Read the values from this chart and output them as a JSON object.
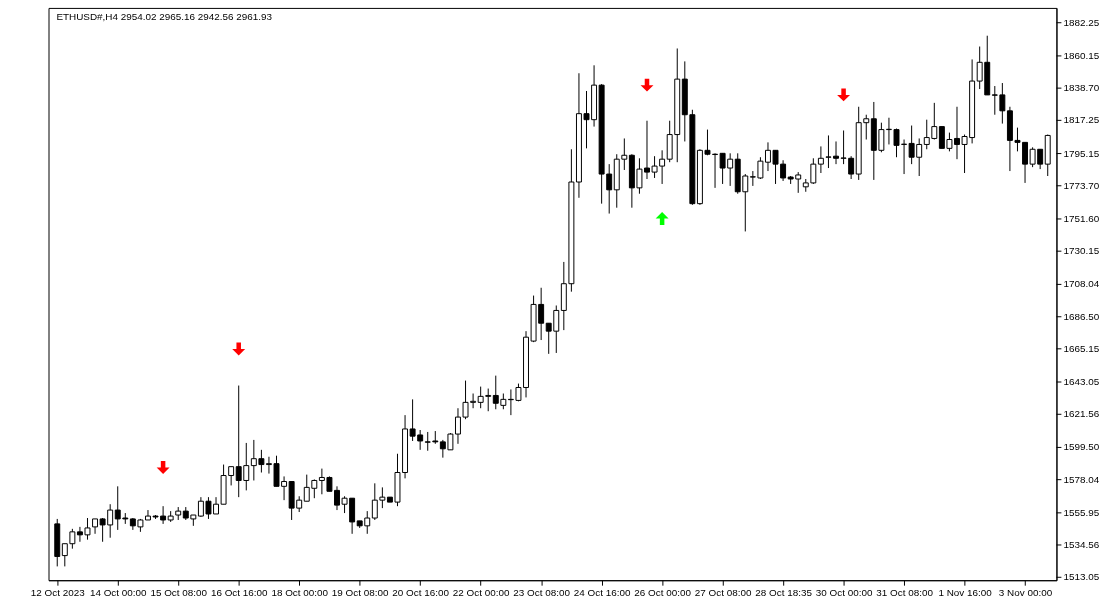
{
  "chart_data": {
    "type": "candlestick",
    "title": "ETHUSD#,H4 2954.02 2965.16 2942.56 2961.93",
    "color": "#000000",
    "categories": [
      "12 Oct 2023",
      null,
      null,
      null,
      null,
      null,
      null,
      null,
      "14 Oct 00:00",
      null,
      null,
      null,
      null,
      null,
      null,
      null,
      "15 Oct 08:00",
      null,
      null,
      null,
      null,
      null,
      null,
      null,
      "16 Oct 16:00",
      null,
      null,
      null,
      null,
      null,
      null,
      null,
      "18 Oct 00:00",
      null,
      null,
      null,
      null,
      null,
      null,
      null,
      "19 Oct 08:00",
      null,
      null,
      null,
      null,
      null,
      null,
      null,
      "20 Oct 16:00",
      null,
      null,
      null,
      null,
      null,
      null,
      null,
      "22 Oct 00:00",
      null,
      null,
      null,
      null,
      null,
      null,
      null,
      "23 Oct 08:00",
      null,
      null,
      null,
      null,
      null,
      null,
      null,
      "24 Oct 16:00",
      null,
      null,
      null,
      null,
      null,
      null,
      null,
      "26 Oct 00:00",
      null,
      null,
      null,
      null,
      null,
      null,
      null,
      "27 Oct 08:00",
      null,
      null,
      null,
      null,
      null,
      null,
      null,
      "28 Oct 18:35",
      null,
      null,
      null,
      null,
      null,
      null,
      null,
      "30 Oct 00:00",
      null,
      null,
      null,
      null,
      null,
      null,
      null,
      "31 Oct 08:00",
      null,
      null,
      null,
      null,
      null,
      null,
      null,
      "1 Nov 16:00",
      null,
      null,
      null,
      null,
      null,
      null,
      null,
      "3 Nov 00:00",
      null,
      null,
      null
    ],
    "ohlc": [
      [
        1548.6,
        1551.9,
        1520.3,
        1526.9
      ],
      [
        1527.5,
        1535.4,
        1520.3,
        1535.4
      ],
      [
        1535.4,
        1545.3,
        1532.1,
        1543.3
      ],
      [
        1543.3,
        1546.6,
        1536.7,
        1541.3
      ],
      [
        1541.3,
        1552.5,
        1538.1,
        1545.9
      ],
      [
        1546.6,
        1551.9,
        1542.0,
        1551.9
      ],
      [
        1551.9,
        1552.5,
        1536.7,
        1547.9
      ],
      [
        1547.9,
        1561.7,
        1539.4,
        1557.8
      ],
      [
        1557.8,
        1573.6,
        1544.6,
        1551.9
      ],
      [
        1552.5,
        1555.8,
        1548.6,
        1551.9
      ],
      [
        1551.9,
        1552.5,
        1544.6,
        1547.3
      ],
      [
        1546.6,
        1551.9,
        1543.3,
        1551.2
      ],
      [
        1551.2,
        1557.8,
        1551.2,
        1553.8
      ],
      [
        1553.8,
        1554.5,
        1551.9,
        1553.2
      ],
      [
        1553.8,
        1560.4,
        1548.6,
        1551.2
      ],
      [
        1551.2,
        1557.1,
        1549.9,
        1553.8
      ],
      [
        1554.5,
        1559.8,
        1551.2,
        1557.1
      ],
      [
        1557.1,
        1559.8,
        1551.2,
        1552.5
      ],
      [
        1551.9,
        1554.5,
        1547.3,
        1554.5
      ],
      [
        1553.8,
        1566.4,
        1553.2,
        1563.7
      ],
      [
        1563.7,
        1566.4,
        1551.9,
        1555.2
      ],
      [
        1555.2,
        1566.4,
        1555.2,
        1561.7
      ],
      [
        1561.7,
        1588.1,
        1561.7,
        1580.8
      ],
      [
        1580.8,
        1586.7,
        1574.2,
        1586.7
      ],
      [
        1586.7,
        1640.7,
        1566.4,
        1577.5
      ],
      [
        1577.5,
        1602.5,
        1570.9,
        1587.4
      ],
      [
        1587.4,
        1604.5,
        1577.5,
        1592.0
      ],
      [
        1592.0,
        1597.9,
        1582.8,
        1588.1
      ],
      [
        1588.1,
        1593.3,
        1582.1,
        1588.7
      ],
      [
        1588.7,
        1594.0,
        1573.6,
        1573.6
      ],
      [
        1573.6,
        1580.2,
        1564.4,
        1576.8
      ],
      [
        1576.8,
        1576.8,
        1551.2,
        1559.1
      ],
      [
        1559.1,
        1567.0,
        1556.5,
        1564.4
      ],
      [
        1563.7,
        1581.4,
        1563.7,
        1572.9
      ],
      [
        1572.3,
        1578.2,
        1565.7,
        1577.5
      ],
      [
        1577.5,
        1585.4,
        1568.3,
        1579.5
      ],
      [
        1579.5,
        1580.2,
        1570.3,
        1570.3
      ],
      [
        1570.9,
        1573.6,
        1557.8,
        1561.1
      ],
      [
        1561.7,
        1567.0,
        1555.8,
        1565.7
      ],
      [
        1565.7,
        1565.7,
        1542.0,
        1549.9
      ],
      [
        1550.6,
        1550.6,
        1545.9,
        1547.3
      ],
      [
        1547.3,
        1557.1,
        1542.0,
        1552.5
      ],
      [
        1552.5,
        1575.6,
        1551.2,
        1564.4
      ],
      [
        1564.4,
        1572.9,
        1559.1,
        1566.4
      ],
      [
        1566.4,
        1566.4,
        1563.1,
        1563.1
      ],
      [
        1563.1,
        1595.3,
        1560.4,
        1582.8
      ],
      [
        1582.8,
        1621.0,
        1578.9,
        1611.8
      ],
      [
        1611.8,
        1631.5,
        1603.8,
        1607.0
      ],
      [
        1607.8,
        1611.1,
        1597.9,
        1603.8
      ],
      [
        1603.2,
        1609.8,
        1597.3,
        1603.0
      ],
      [
        1603.8,
        1610.4,
        1601.9,
        1603.2
      ],
      [
        1603.2,
        1604.5,
        1592.7,
        1598.6
      ],
      [
        1597.9,
        1609.1,
        1597.9,
        1608.4
      ],
      [
        1608.4,
        1625.6,
        1601.9,
        1619.7
      ],
      [
        1619.7,
        1644.0,
        1618.3,
        1629.5
      ],
      [
        1629.5,
        1635.4,
        1625.6,
        1630.2
      ],
      [
        1629.5,
        1640.0,
        1625.6,
        1633.5
      ],
      [
        1633.5,
        1638.7,
        1623.6,
        1634.1
      ],
      [
        1634.1,
        1647.3,
        1624.9,
        1628.9
      ],
      [
        1627.5,
        1635.4,
        1624.9,
        1631.5
      ],
      [
        1631.5,
        1638.1,
        1621.0,
        1631.3
      ],
      [
        1630.8,
        1642.0,
        1630.2,
        1639.4
      ],
      [
        1639.4,
        1676.9,
        1632.8,
        1672.9
      ],
      [
        1670.3,
        1700.6,
        1669.6,
        1694.7
      ],
      [
        1694.7,
        1705.8,
        1671.0,
        1682.2
      ],
      [
        1682.2,
        1682.2,
        1661.8,
        1676.9
      ],
      [
        1676.9,
        1694.0,
        1662.4,
        1690.7
      ],
      [
        1690.7,
        1723.0,
        1677.6,
        1708.5
      ],
      [
        1708.5,
        1798.0,
        1703.2,
        1776.2
      ],
      [
        1776.2,
        1848.6,
        1765.7,
        1821.7
      ],
      [
        1821.7,
        1836.8,
        1798.6,
        1817.7
      ],
      [
        1817.7,
        1853.9,
        1813.1,
        1840.7
      ],
      [
        1840.7,
        1841.4,
        1761.8,
        1781.5
      ],
      [
        1781.5,
        1788.1,
        1755.2,
        1771.0
      ],
      [
        1771.0,
        1794.7,
        1759.1,
        1791.4
      ],
      [
        1791.4,
        1805.2,
        1784.2,
        1794.0
      ],
      [
        1794.0,
        1794.7,
        1759.1,
        1772.3
      ],
      [
        1772.3,
        1792.0,
        1768.4,
        1784.8
      ],
      [
        1785.5,
        1817.0,
        1778.2,
        1782.8
      ],
      [
        1782.8,
        1793.4,
        1778.9,
        1786.8
      ],
      [
        1786.8,
        1797.3,
        1774.9,
        1791.4
      ],
      [
        1791.4,
        1817.0,
        1789.4,
        1807.8
      ],
      [
        1807.8,
        1865.1,
        1789.4,
        1844.7
      ],
      [
        1844.7,
        1856.5,
        1803.2,
        1821.0
      ],
      [
        1821.0,
        1824.3,
        1761.0,
        1761.8
      ],
      [
        1761.8,
        1798.0,
        1761.0,
        1797.3
      ],
      [
        1797.3,
        1811.1,
        1794.0,
        1794.7
      ],
      [
        1794.7,
        1795.3,
        1772.3,
        1794.5
      ],
      [
        1795.3,
        1795.3,
        1774.9,
        1785.5
      ],
      [
        1785.5,
        1795.3,
        1773.6,
        1791.4
      ],
      [
        1791.4,
        1795.3,
        1768.4,
        1769.7
      ],
      [
        1769.7,
        1781.5,
        1743.3,
        1780.2
      ],
      [
        1779.5,
        1783.5,
        1773.6,
        1779.7
      ],
      [
        1778.9,
        1792.7,
        1778.2,
        1790.1
      ],
      [
        1789.4,
        1802.6,
        1783.5,
        1797.3
      ],
      [
        1797.3,
        1797.3,
        1774.9,
        1788.1
      ],
      [
        1788.1,
        1790.7,
        1776.9,
        1778.9
      ],
      [
        1779.5,
        1780.2,
        1774.9,
        1778.2
      ],
      [
        1778.2,
        1782.8,
        1769.0,
        1780.9
      ],
      [
        1773.0,
        1778.2,
        1769.7,
        1775.6
      ],
      [
        1775.6,
        1792.0,
        1774.9,
        1788.1
      ],
      [
        1788.1,
        1799.9,
        1782.2,
        1792.0
      ],
      [
        1792.7,
        1807.2,
        1785.5,
        1792.9
      ],
      [
        1793.4,
        1803.2,
        1788.1,
        1792.0
      ],
      [
        1792.0,
        1810.5,
        1788.1,
        1792.2
      ],
      [
        1792.0,
        1793.4,
        1778.2,
        1781.5
      ],
      [
        1781.5,
        1826.3,
        1777.6,
        1815.7
      ],
      [
        1815.7,
        1821.0,
        1804.5,
        1818.3
      ],
      [
        1818.3,
        1829.5,
        1777.6,
        1797.3
      ],
      [
        1797.3,
        1815.7,
        1796.0,
        1811.1
      ],
      [
        1811.1,
        1819.0,
        1801.2,
        1811.3
      ],
      [
        1811.1,
        1811.8,
        1792.7,
        1800.6
      ],
      [
        1801.2,
        1804.5,
        1781.5,
        1801.4
      ],
      [
        1801.9,
        1813.8,
        1788.1,
        1792.7
      ],
      [
        1792.7,
        1805.2,
        1780.2,
        1801.2
      ],
      [
        1801.2,
        1817.7,
        1798.0,
        1805.8
      ],
      [
        1805.2,
        1828.9,
        1804.5,
        1813.1
      ],
      [
        1813.1,
        1813.1,
        1798.6,
        1798.6
      ],
      [
        1798.6,
        1809.1,
        1796.6,
        1804.5
      ],
      [
        1805.2,
        1826.3,
        1791.4,
        1801.2
      ],
      [
        1801.2,
        1807.8,
        1782.2,
        1806.5
      ],
      [
        1805.8,
        1857.8,
        1801.9,
        1843.4
      ],
      [
        1843.4,
        1866.4,
        1838.1,
        1855.9
      ],
      [
        1855.9,
        1873.6,
        1834.2,
        1834.2
      ],
      [
        1834.2,
        1840.1,
        1821.0,
        1834.0
      ],
      [
        1834.2,
        1842.1,
        1815.1,
        1823.6
      ],
      [
        1823.6,
        1826.3,
        1783.5,
        1803.9
      ],
      [
        1803.9,
        1812.4,
        1796.6,
        1802.6
      ],
      [
        1802.6,
        1802.6,
        1775.6,
        1788.1
      ],
      [
        1788.1,
        1799.3,
        1786.1,
        1798.0
      ],
      [
        1798.0,
        1798.0,
        1784.8,
        1788.1
      ],
      [
        1788.1,
        1807.8,
        1780.2,
        1807.2
      ]
    ],
    "series": [
      {
        "type": "scatter",
        "color": "#ff0000",
        "values": [
          null,
          null,
          null,
          null,
          null,
          null,
          null,
          null,
          null,
          null,
          null,
          null,
          null,
          null,
          1586.1,
          null,
          null,
          null,
          null,
          null,
          null,
          null,
          null,
          null,
          1665.0,
          null,
          null,
          null,
          null,
          null,
          null,
          null,
          null,
          null,
          null,
          null,
          null,
          null,
          null,
          null,
          null,
          null,
          null,
          null,
          null,
          null,
          null,
          null,
          null,
          null,
          null,
          null,
          null,
          null,
          null,
          null,
          null,
          null,
          null,
          null,
          null,
          null,
          null,
          null,
          null,
          null,
          null,
          null,
          null,
          null,
          null,
          null,
          null,
          null,
          null,
          null,
          null,
          null,
          1840.7,
          null,
          null,
          null,
          null,
          null,
          null,
          null,
          null,
          null,
          null,
          null,
          null,
          null,
          null,
          null,
          null,
          null,
          null,
          null,
          null,
          null,
          null,
          null,
          null,
          null,
          1834.2,
          null,
          null,
          null,
          null,
          null,
          null,
          null,
          null,
          null,
          null,
          null,
          null,
          null,
          null,
          null,
          null,
          null,
          null,
          null,
          null,
          null,
          null,
          null,
          null,
          null,
          null,
          null
        ]
      },
      {
        "type": "scatter",
        "color": "#00ff00",
        "values": [
          null,
          null,
          null,
          null,
          null,
          null,
          null,
          null,
          null,
          null,
          null,
          null,
          null,
          null,
          null,
          null,
          null,
          null,
          null,
          null,
          null,
          null,
          null,
          null,
          null,
          null,
          null,
          null,
          null,
          null,
          null,
          null,
          null,
          null,
          null,
          null,
          null,
          null,
          null,
          null,
          null,
          null,
          null,
          null,
          null,
          null,
          null,
          null,
          null,
          null,
          null,
          null,
          null,
          null,
          null,
          null,
          null,
          null,
          null,
          null,
          null,
          null,
          null,
          null,
          null,
          null,
          null,
          null,
          null,
          null,
          null,
          null,
          null,
          null,
          null,
          null,
          null,
          null,
          null,
          null,
          1751.9,
          null,
          null,
          null,
          null,
          null,
          null,
          null,
          null,
          null,
          null,
          null,
          null,
          null,
          null,
          null,
          null,
          null,
          null,
          null,
          null,
          null,
          null,
          null,
          null,
          null,
          null,
          null,
          null,
          null,
          null,
          null,
          null,
          null,
          null,
          null,
          null,
          null,
          null,
          null,
          null,
          null,
          null,
          null,
          null,
          null,
          null,
          null,
          null,
          null,
          null,
          null
        ]
      }
    ],
    "ylim": [
      1511.1,
      1892.1
    ],
    "yticks": [
      1513.05,
      1534.56,
      1555.95,
      1578.04,
      {
        "value": 1599.5,
        "label": "1599.50"
      },
      1621.56,
      1643.05,
      1665.15,
      {
        "value": 1686.5,
        "label": "1686.50"
      },
      1708.04,
      1730.15,
      {
        "value": 1751.6,
        "label": "1751.60"
      },
      {
        "value": 1773.7,
        "label": "1773.70"
      },
      1795.15,
      1817.25,
      {
        "value": 1838.7,
        "label": "1838.70"
      },
      1860.15,
      1882.25
    ],
    "grid": false
  }
}
